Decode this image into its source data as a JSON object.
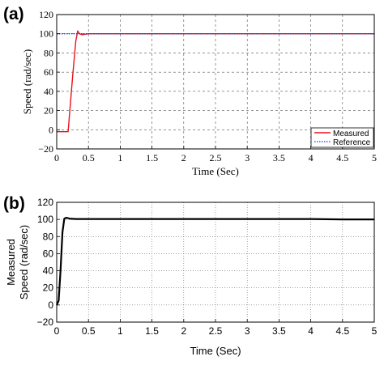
{
  "chart_data": [
    {
      "panel_label": "(a)",
      "type": "line",
      "xlabel": "Time (Sec)",
      "ylabel": "Speed (rad/sec)",
      "xlim": [
        0,
        5
      ],
      "ylim": [
        -20,
        120
      ],
      "xticks": [
        "0",
        "0.5",
        "1",
        "1.5",
        "2",
        "2.5",
        "3",
        "3.5",
        "4",
        "4.5",
        "5"
      ],
      "yticks": [
        "−20",
        "0",
        "20",
        "40",
        "60",
        "80",
        "100",
        "120"
      ],
      "grid": "dashed",
      "legend": "bottom-right",
      "series": [
        {
          "name": "Measured",
          "color": "#e8141c",
          "style": "solid",
          "x": [
            0,
            0.18,
            0.2,
            0.25,
            0.3,
            0.33,
            0.36,
            0.4,
            0.5,
            1,
            1.5,
            2,
            2.5,
            3,
            3.5,
            4,
            4.5,
            5
          ],
          "y": [
            -2,
            -2,
            15,
            55,
            92,
            103,
            100,
            99,
            100,
            100,
            100,
            100,
            100,
            100,
            100,
            100,
            100,
            100
          ]
        },
        {
          "name": "Reference",
          "color": "#1f3fbf",
          "style": "dotted",
          "x": [
            0,
            5
          ],
          "y": [
            100,
            100
          ]
        }
      ]
    },
    {
      "panel_label": "(b)",
      "type": "line",
      "xlabel": "Time (Sec)",
      "ylabel": [
        "Measured",
        "Speed (rad/sec)"
      ],
      "xlim": [
        0,
        5
      ],
      "ylim": [
        -20,
        120
      ],
      "xticks": [
        "0",
        "0.5",
        "1",
        "1.5",
        "2",
        "2.5",
        "3",
        "3.5",
        "4",
        "4.5",
        "5"
      ],
      "yticks": [
        "−20",
        "0",
        "20",
        "40",
        "60",
        "80",
        "100",
        "120"
      ],
      "grid": "dotted",
      "series": [
        {
          "color": "#000000",
          "style": "solid",
          "x": [
            0,
            0.03,
            0.06,
            0.09,
            0.12,
            0.15,
            0.2,
            0.3,
            1,
            2,
            3,
            4,
            4.5,
            5
          ],
          "y": [
            0,
            5,
            40,
            85,
            101,
            102,
            101,
            100.5,
            100.5,
            100.5,
            100.5,
            100.5,
            100,
            100
          ]
        }
      ]
    }
  ]
}
